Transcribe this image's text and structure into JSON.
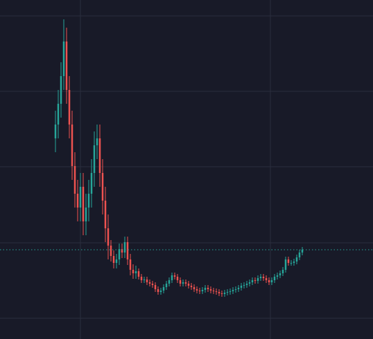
{
  "chart_data": {
    "type": "candlestick",
    "open": [
      290,
      310,
      340,
      380,
      430,
      360,
      310,
      250,
      210,
      190,
      220,
      170,
      190,
      210,
      240,
      280,
      290,
      240,
      200,
      160,
      135,
      120,
      110,
      115,
      130,
      125,
      140,
      115,
      100,
      95,
      98,
      90,
      85,
      86,
      82,
      80,
      78,
      72,
      68,
      70,
      75,
      80,
      85,
      92,
      90,
      85,
      80,
      82,
      80,
      77,
      75,
      72,
      70,
      69,
      71,
      74,
      72,
      70,
      69,
      68,
      66,
      65,
      67,
      68,
      69,
      71,
      72,
      74,
      77,
      78,
      80,
      82,
      85,
      84,
      88,
      90,
      88,
      85,
      82,
      85,
      90,
      92,
      95,
      100,
      115,
      110,
      110,
      112,
      118,
      125
    ],
    "high": [
      330,
      360,
      400,
      462,
      450,
      380,
      330,
      270,
      230,
      240,
      240,
      210,
      230,
      260,
      300,
      310,
      310,
      260,
      220,
      180,
      143,
      128,
      123,
      138,
      138,
      148,
      148,
      123,
      108,
      106,
      102,
      94,
      90,
      90,
      86,
      84,
      82,
      76,
      74,
      79,
      84,
      89,
      96,
      96,
      94,
      89,
      86,
      86,
      84,
      81,
      79,
      76,
      74,
      75,
      78,
      78,
      76,
      74,
      73,
      72,
      70,
      71,
      72,
      73,
      75,
      76,
      78,
      81,
      82,
      84,
      86,
      89,
      89,
      92,
      94,
      94,
      92,
      89,
      89,
      94,
      96,
      99,
      104,
      119,
      119,
      114,
      116,
      122,
      129,
      133
    ],
    "low": [
      270,
      290,
      320,
      360,
      340,
      290,
      230,
      190,
      170,
      170,
      150,
      150,
      170,
      190,
      220,
      260,
      220,
      180,
      140,
      115,
      112,
      102,
      102,
      107,
      117,
      117,
      107,
      92,
      87,
      87,
      86,
      81,
      81,
      78,
      76,
      74,
      68,
      64,
      64,
      66,
      71,
      76,
      81,
      86,
      81,
      76,
      76,
      76,
      73,
      71,
      68,
      66,
      65,
      65,
      67,
      68,
      66,
      65,
      64,
      62,
      61,
      61,
      63,
      64,
      65,
      67,
      68,
      70,
      73,
      74,
      76,
      78,
      80,
      80,
      84,
      84,
      81,
      78,
      78,
      81,
      86,
      88,
      91,
      96,
      106,
      106,
      106,
      108,
      114,
      121
    ],
    "close": [
      310,
      340,
      380,
      430,
      360,
      310,
      250,
      210,
      190,
      220,
      170,
      190,
      210,
      240,
      280,
      290,
      240,
      200,
      160,
      135,
      120,
      110,
      115,
      130,
      125,
      140,
      115,
      100,
      95,
      98,
      90,
      85,
      86,
      82,
      80,
      78,
      72,
      68,
      70,
      75,
      80,
      85,
      92,
      90,
      85,
      80,
      82,
      80,
      77,
      75,
      72,
      70,
      69,
      71,
      74,
      72,
      70,
      69,
      68,
      66,
      65,
      67,
      68,
      69,
      71,
      72,
      74,
      77,
      78,
      80,
      82,
      85,
      84,
      88,
      90,
      88,
      85,
      82,
      85,
      90,
      92,
      95,
      100,
      115,
      110,
      110,
      112,
      118,
      125,
      129
    ],
    "up_color": "#26a69a",
    "down_color": "#ef5350",
    "ylim": [
      0,
      490
    ],
    "yticks": [
      30,
      139,
      249,
      358,
      467
    ],
    "xticks": [
      9,
      77.5
    ],
    "grid": true,
    "last_price_line": true
  }
}
